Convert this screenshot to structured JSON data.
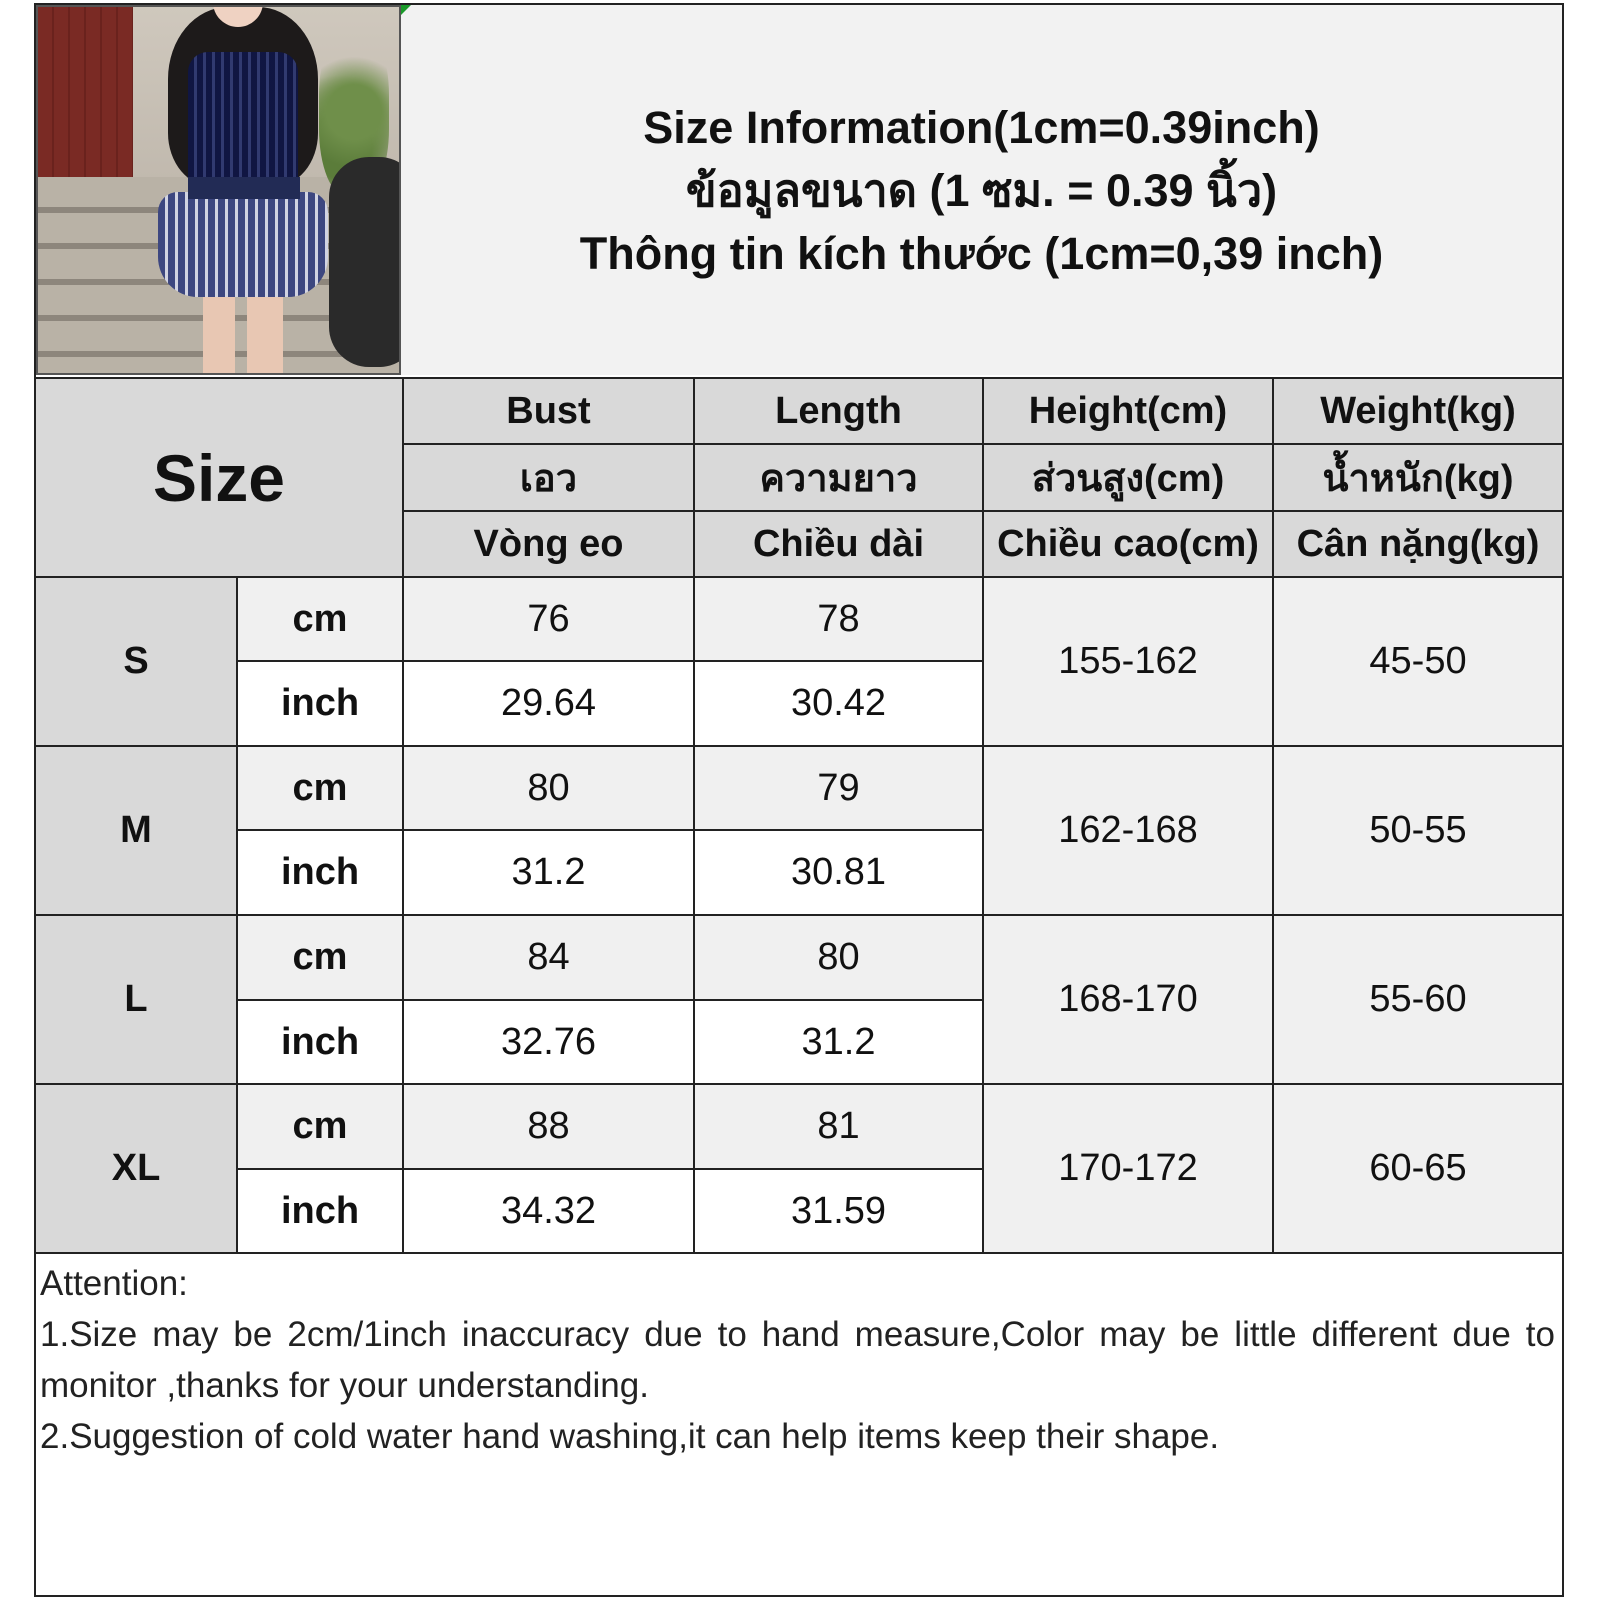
{
  "header": {
    "lines": [
      "Size Information(1cm=0.39inch)",
      "ข้อมูลขนาด (1 ซม. = 0.39 นิ้ว)",
      "Thông tin kích thước (1cm=0,39 inch)"
    ]
  },
  "table": {
    "size_label": "Size",
    "columns": [
      {
        "en": "Bust",
        "th": "เอว",
        "vi": "Vòng eo"
      },
      {
        "en": "Length",
        "th": "ความยาว",
        "vi": "Chiều dài"
      },
      {
        "en": "Height(cm)",
        "th": "ส่วนสูง(cm)",
        "vi": "Chiều cao(cm)"
      },
      {
        "en": "Weight(kg)",
        "th": "น้ำหนัก(kg)",
        "vi": "Cân nặng(kg)"
      }
    ],
    "unit_cm": "cm",
    "unit_inch": "inch",
    "rows": [
      {
        "size": "S",
        "bust_cm": "76",
        "length_cm": "78",
        "bust_inch": "29.64",
        "length_inch": "30.42",
        "height": "155-162",
        "weight": "45-50"
      },
      {
        "size": "M",
        "bust_cm": "80",
        "length_cm": "79",
        "bust_inch": "31.2",
        "length_inch": "30.81",
        "height": "162-168",
        "weight": "50-55"
      },
      {
        "size": "L",
        "bust_cm": "84",
        "length_cm": "80",
        "bust_inch": "32.76",
        "length_inch": "31.2",
        "height": "168-170",
        "weight": "55-60"
      },
      {
        "size": "XL",
        "bust_cm": "88",
        "length_cm": "81",
        "bust_inch": "34.32",
        "length_inch": "31.59",
        "height": "170-172",
        "weight": "60-65"
      }
    ]
  },
  "notes": {
    "heading": "Attention:",
    "items": [
      "1.Size may be 2cm/1inch inaccuracy due to hand measure,Color may be little different due to monitor ,thanks for your understanding.",
      "2.Suggestion of cold water hand washing,it can help items keep their shape."
    ]
  },
  "colors": {
    "header_gray": "#d9d9d9",
    "light_gray": "#f0f0f0",
    "border": "#222222"
  }
}
